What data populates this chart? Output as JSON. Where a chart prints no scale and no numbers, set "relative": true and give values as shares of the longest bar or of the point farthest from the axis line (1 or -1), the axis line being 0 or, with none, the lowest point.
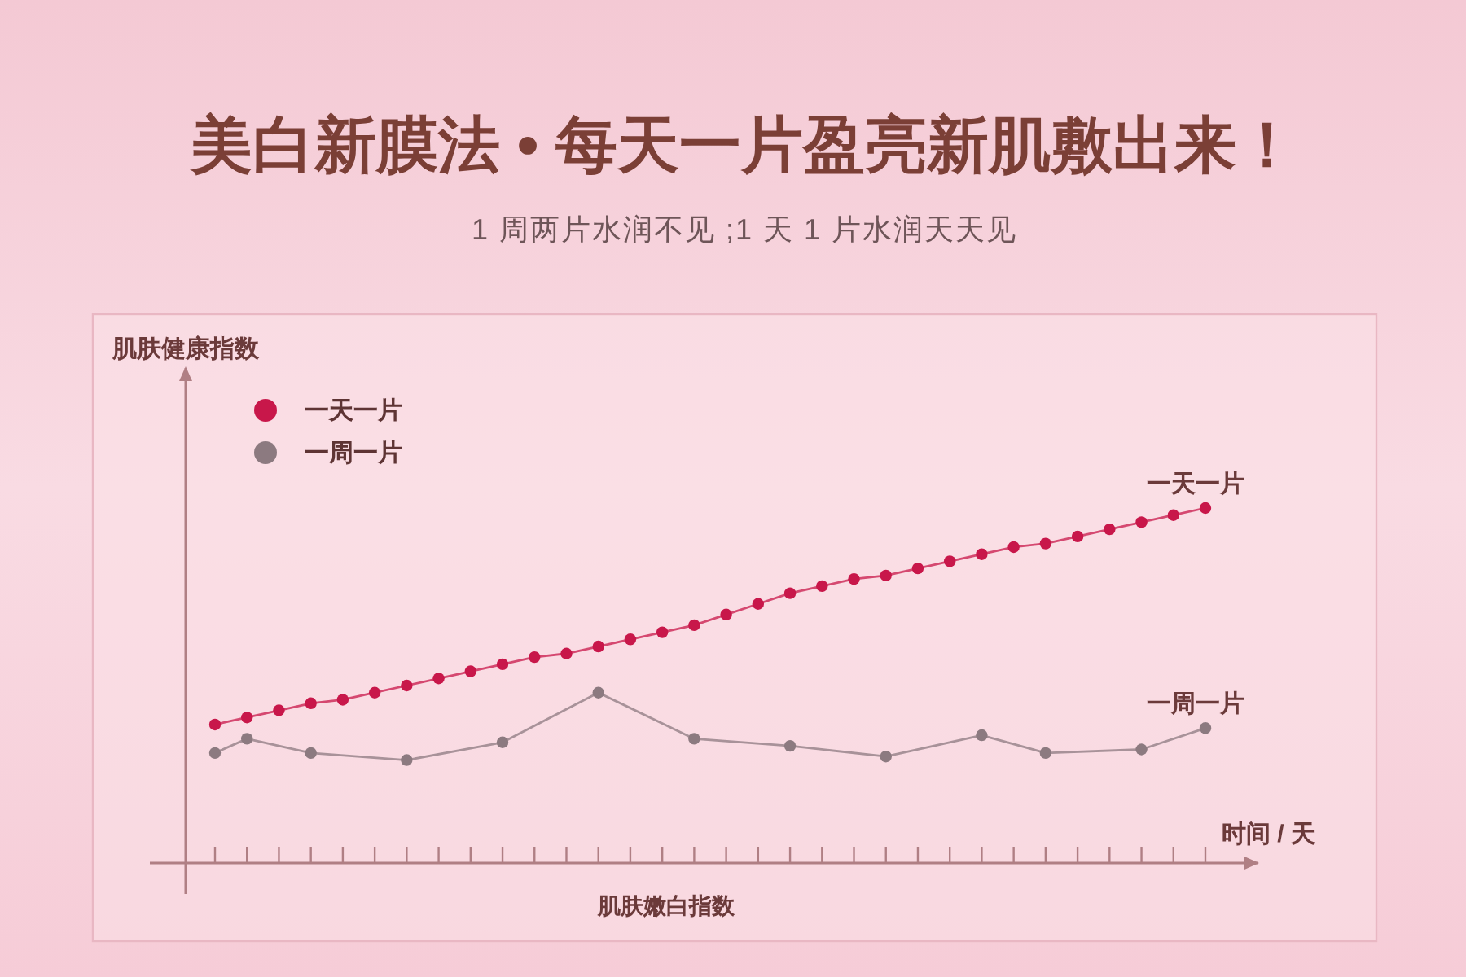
{
  "chart_data": {
    "type": "line",
    "title": "美白新膜法 • 每天一片盈亮新肌敷出来！",
    "subtitle": "1 周两片水润不见 ;1 天 1 片水润天天见",
    "xlabel": "时间 / 天",
    "relative": true,
    "legend": "top left",
    "marker": "circle",
    "categories": [
      null,
      null,
      null,
      null,
      null,
      null,
      null,
      null,
      null,
      null,
      null,
      null,
      null,
      null,
      null,
      null,
      null,
      null,
      null,
      null,
      null,
      null,
      null,
      null,
      null,
      null,
      null,
      null,
      null,
      null,
      null,
      null
    ],
    "series": [
      {
        "name": "一天一片",
        "color": "#c8174a",
        "values": [
          0.39,
          0.41,
          0.43,
          0.45,
          0.46,
          0.48,
          0.5,
          0.52,
          0.54,
          0.56,
          0.58,
          0.59,
          0.61,
          0.63,
          0.65,
          0.67,
          0.7,
          0.73,
          0.76,
          0.78,
          0.8,
          0.81,
          0.83,
          0.85,
          0.87,
          0.89,
          0.9,
          0.92,
          0.94,
          0.96,
          0.98,
          1
        ]
      },
      {
        "name": "一周一片",
        "color": "#8c7a80",
        "values": [
          0.31,
          0.35,
          null,
          0.31,
          null,
          null,
          0.29,
          null,
          null,
          0.34,
          null,
          null,
          0.48,
          null,
          null,
          0.35,
          null,
          null,
          0.33,
          null,
          null,
          0.3,
          null,
          null,
          0.36,
          null,
          0.31,
          null,
          null,
          0.32,
          null,
          0.38
        ]
      }
    ],
    "annotations": [
      "肌肤健康指数",
      {
        "text": "一天一片",
        "y": 1
      },
      {
        "text": "一周一片",
        "y": 0.38
      },
      "肌肤嫩白指数"
    ]
  }
}
